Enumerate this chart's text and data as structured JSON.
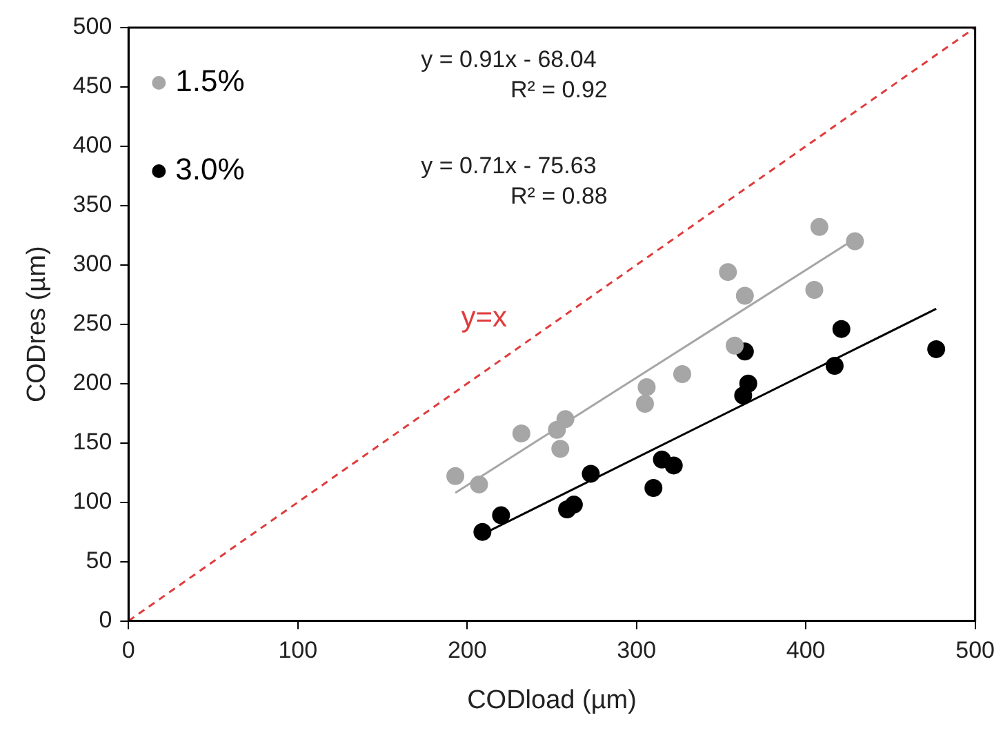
{
  "chart_data": {
    "type": "scatter",
    "xlabel": "CODload (µm)",
    "ylabel": "CODres (µm)",
    "xlim": [
      0,
      500
    ],
    "xticks": [
      0,
      100,
      200,
      300,
      400,
      500
    ],
    "ylim": [
      0,
      500
    ],
    "yticks": [
      0,
      50,
      100,
      150,
      200,
      250,
      300,
      350,
      400,
      450,
      500
    ],
    "grid": false,
    "legend": "top left",
    "marker": "circle",
    "series": [
      {
        "name": "1.5%",
        "color": "#a6a6a6",
        "x": [
          193,
          207,
          232,
          253,
          255,
          258,
          305,
          306,
          327,
          354,
          358,
          364,
          405,
          408,
          429
        ],
        "values": [
          122,
          115,
          158,
          161,
          145,
          170,
          183,
          197,
          208,
          294,
          232,
          274,
          279,
          332,
          320
        ]
      },
      {
        "name": "3.0%",
        "color": "#000000",
        "x": [
          209,
          220,
          259,
          263,
          273,
          310,
          315,
          322,
          363,
          364,
          366,
          417,
          421,
          477
        ],
        "values": [
          75,
          89,
          94,
          98,
          124,
          112,
          136,
          131,
          190,
          227,
          200,
          215,
          246,
          229
        ]
      },
      {
        "type": "line",
        "color": "#a6a6a6",
        "marker": "none",
        "line_style": "solid",
        "x": [
          193,
          429
        ],
        "values": [
          108,
          322
        ]
      },
      {
        "type": "line",
        "color": "#000000",
        "marker": "none",
        "line_style": "solid",
        "x": [
          209,
          477
        ],
        "values": [
          73,
          263
        ]
      },
      {
        "type": "line",
        "color": "#e03c3c",
        "marker": "none",
        "line_style": "dashed",
        "x": [
          0,
          500
        ],
        "values": [
          0,
          500
        ]
      }
    ],
    "annotations": [
      "y = 0.91x - 68.04",
      "R² = 0.92",
      "y = 0.71x - 75.63",
      "R² = 0.88",
      "y=x"
    ]
  }
}
